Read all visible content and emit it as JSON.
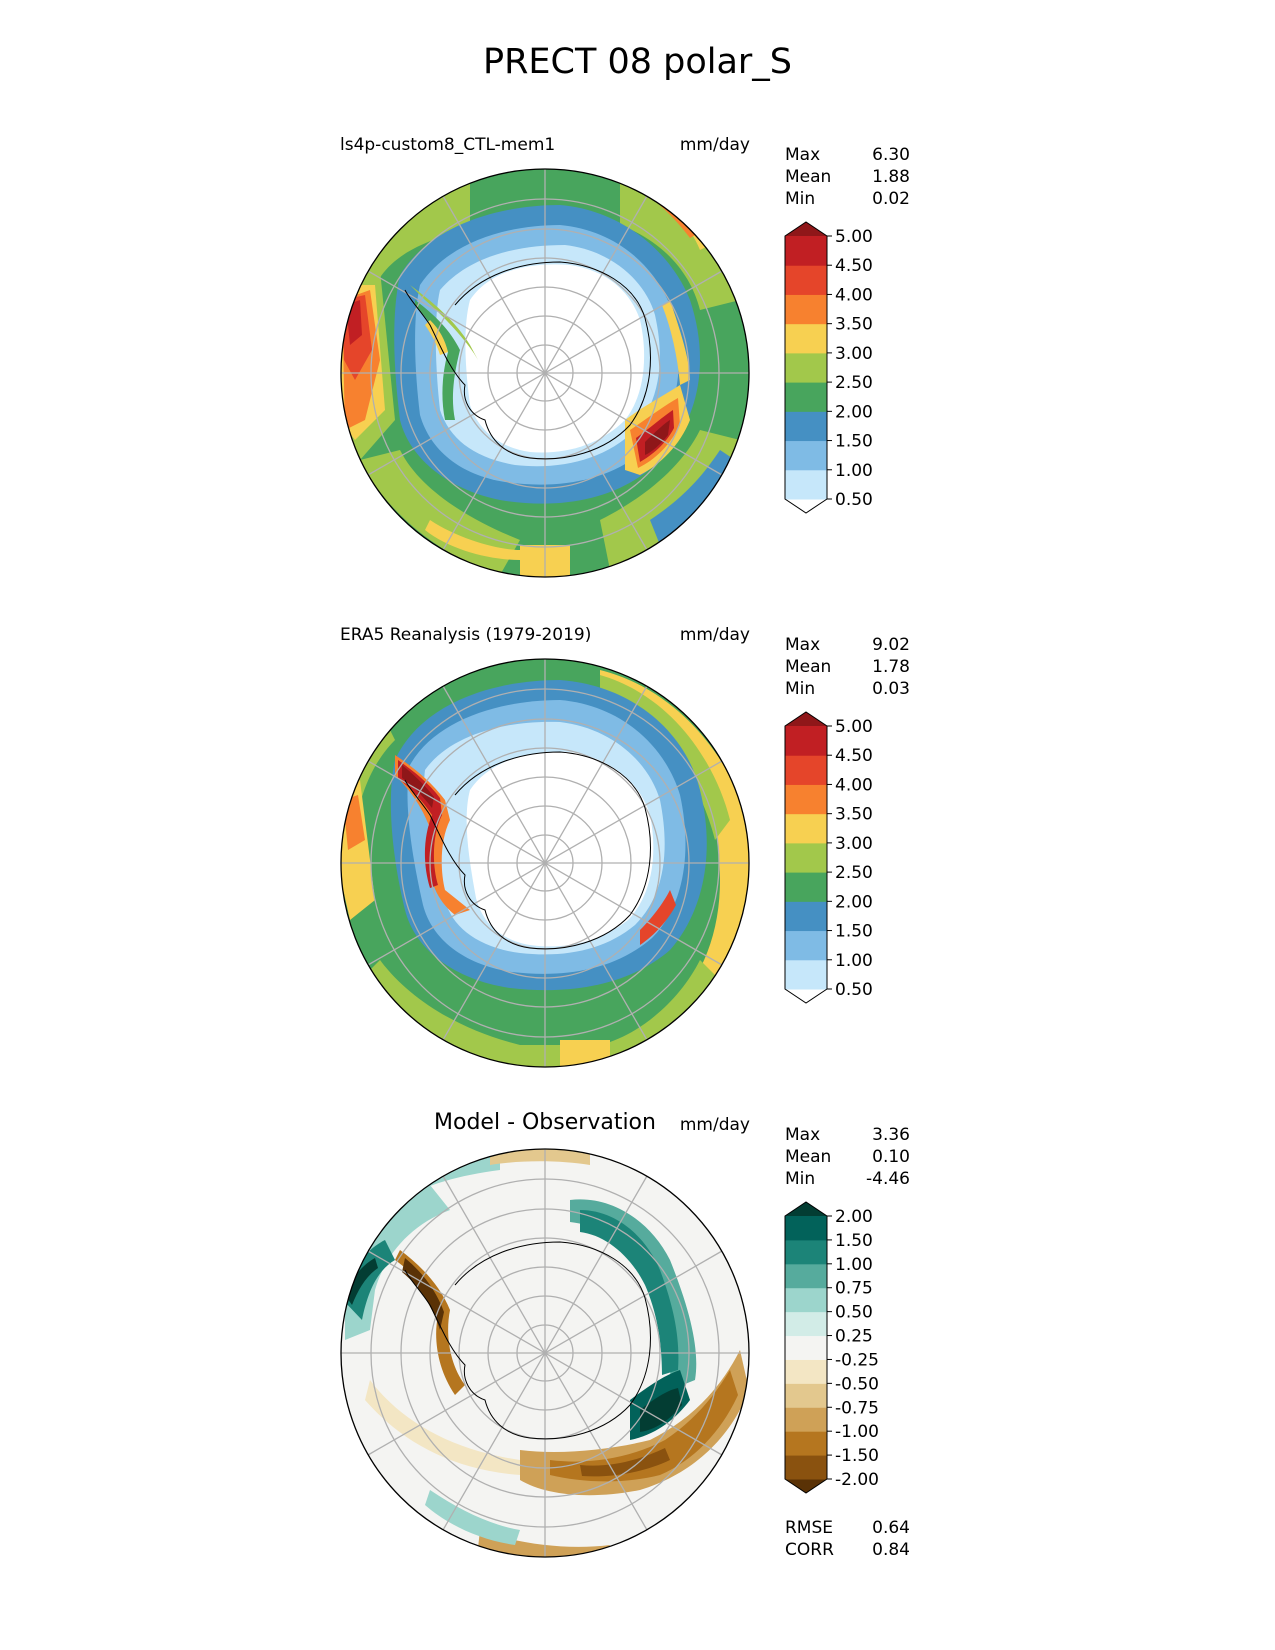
{
  "title": "PRECT 08 polar_S",
  "panels": [
    {
      "left_title": "ls4p-custom8_CTL-mem1",
      "center_title": "",
      "units": "mm/day",
      "stats": [
        {
          "label": "Max",
          "value": "6.30"
        },
        {
          "label": "Mean",
          "value": "1.88"
        },
        {
          "label": "Min",
          "value": "0.02"
        }
      ],
      "colorbar": {
        "colors": [
          "#ffffff",
          "#c6e7fa",
          "#7fbbe5",
          "#4590c3",
          "#48a55d",
          "#a2c84b",
          "#f7d051",
          "#f7812f",
          "#e5452a",
          "#c11f23",
          "#8f1719"
        ],
        "ticks": [
          "0.50",
          "1.00",
          "1.50",
          "2.00",
          "2.50",
          "3.00",
          "3.50",
          "4.00",
          "4.50",
          "5.00"
        ]
      },
      "footer": []
    },
    {
      "left_title": "ERA5 Reanalysis (1979-2019)",
      "center_title": "",
      "units": "mm/day",
      "stats": [
        {
          "label": "Max",
          "value": "9.02"
        },
        {
          "label": "Mean",
          "value": "1.78"
        },
        {
          "label": "Min",
          "value": "0.03"
        }
      ],
      "colorbar": {
        "colors": [
          "#ffffff",
          "#c6e7fa",
          "#7fbbe5",
          "#4590c3",
          "#48a55d",
          "#a2c84b",
          "#f7d051",
          "#f7812f",
          "#e5452a",
          "#c11f23",
          "#8f1719"
        ],
        "ticks": [
          "0.50",
          "1.00",
          "1.50",
          "2.00",
          "2.50",
          "3.00",
          "3.50",
          "4.00",
          "4.50",
          "5.00"
        ]
      },
      "footer": []
    },
    {
      "left_title": "",
      "center_title": "Model - Observation",
      "units": "mm/day",
      "stats": [
        {
          "label": "Max",
          "value": "3.36"
        },
        {
          "label": "Mean",
          "value": "0.10"
        },
        {
          "label": "Min",
          "value": "-4.46"
        }
      ],
      "colorbar": {
        "colors": [
          "#5a3206",
          "#8a520f",
          "#b5761f",
          "#cfa157",
          "#e3c88e",
          "#f3e6c4",
          "#f4f4f2",
          "#d2ece7",
          "#9cd5cc",
          "#56ab9d",
          "#1c8478",
          "#02625a",
          "#033d33"
        ],
        "ticks": [
          "-2.00",
          "-1.50",
          "-1.00",
          "-0.75",
          "-0.50",
          "-0.25",
          "0.25",
          "0.50",
          "0.75",
          "1.00",
          "1.50",
          "2.00"
        ]
      },
      "footer": [
        {
          "label": "RMSE",
          "value": "0.64"
        },
        {
          "label": "CORR",
          "value": "0.84"
        }
      ]
    }
  ]
}
